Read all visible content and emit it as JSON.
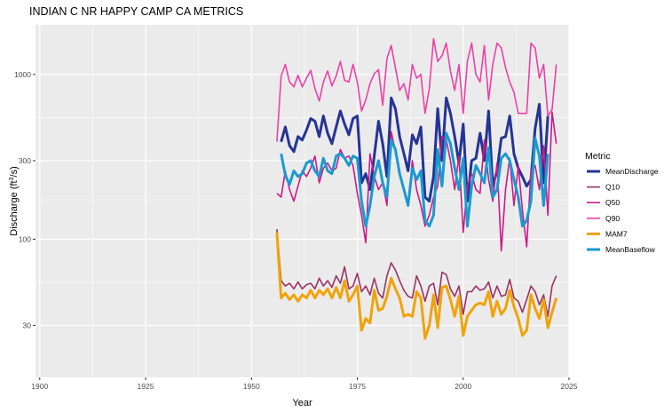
{
  "chart_data": {
    "type": "line",
    "title": "INDIAN C NR HAPPY CAMP CA  METRICS",
    "xlabel": "Year",
    "ylabel": "Discharge (ft³/s)",
    "ylabel_parts": [
      "Discharge (ft",
      "3",
      "/s)"
    ],
    "xlim": [
      1899,
      2025
    ],
    "ylim": [
      14.5,
      2000
    ],
    "y_scale": "log",
    "x_ticks": [
      1900,
      1925,
      1950,
      1975,
      2000,
      2025
    ],
    "x_tick_labels": [
      "1900",
      "1925",
      "1950",
      "1975",
      "2000",
      "2025"
    ],
    "y_ticks": [
      30,
      100,
      300,
      1000
    ],
    "y_tick_labels": [
      "30",
      "100",
      "300",
      "1000"
    ],
    "grid": true,
    "background": "#ebebeb",
    "legend": {
      "title": "Metric",
      "position": "right"
    },
    "series": [
      {
        "name": "MeanDischarge",
        "color": "#253494",
        "width": 3,
        "x": [
          1957,
          1958,
          1959,
          1960,
          1961,
          1962,
          1963,
          1964,
          1965,
          1966,
          1967,
          1968,
          1969,
          1970,
          1971,
          1972,
          1973,
          1974,
          1975,
          1976,
          1977,
          1978,
          1979,
          1980,
          1981,
          1982,
          1983,
          1984,
          1985,
          1986,
          1987,
          1988,
          1989,
          1990,
          1991,
          1992,
          1993,
          1994,
          1995,
          1996,
          1997,
          1998,
          1999,
          2000,
          2001,
          2002,
          2003,
          2004,
          2005,
          2006,
          2007,
          2008,
          2009,
          2010,
          2011,
          2012,
          2013,
          2014,
          2015,
          2016,
          2017,
          2018,
          2019,
          2020
        ],
        "y": [
          390,
          480,
          370,
          340,
          420,
          400,
          460,
          540,
          520,
          420,
          560,
          440,
          380,
          480,
          600,
          500,
          430,
          540,
          560,
          220,
          250,
          200,
          320,
          520,
          380,
          240,
          720,
          620,
          420,
          330,
          260,
          430,
          380,
          480,
          180,
          170,
          240,
          620,
          300,
          720,
          580,
          420,
          290,
          500,
          170,
          300,
          310,
          440,
          300,
          600,
          210,
          260,
          410,
          420,
          560,
          330,
          270,
          240,
          210,
          230,
          470,
          660,
          220,
          560
        ]
      },
      {
        "name": "Q10",
        "color": "#993366",
        "width": 1.6,
        "x": [
          1956,
          1957,
          1958,
          1959,
          1960,
          1961,
          1962,
          1963,
          1964,
          1965,
          1966,
          1967,
          1968,
          1969,
          1970,
          1971,
          1972,
          1973,
          1974,
          1975,
          1976,
          1977,
          1978,
          1979,
          1980,
          1981,
          1982,
          1983,
          1984,
          1985,
          1986,
          1987,
          1988,
          1989,
          1990,
          1991,
          1992,
          1993,
          1994,
          1995,
          1996,
          1997,
          1998,
          1999,
          2000,
          2001,
          2002,
          2003,
          2004,
          2005,
          2006,
          2007,
          2008,
          2009,
          2010,
          2011,
          2012,
          2013,
          2014,
          2015,
          2016,
          2017,
          2018,
          2019,
          2020,
          2021,
          2022
        ],
        "y": [
          115,
          56,
          52,
          54,
          50,
          55,
          50,
          53,
          54,
          50,
          58,
          52,
          56,
          51,
          60,
          54,
          68,
          50,
          52,
          62,
          48,
          52,
          46,
          58,
          47,
          44,
          60,
          72,
          65,
          56,
          49,
          45,
          44,
          60,
          52,
          42,
          52,
          54,
          40,
          63,
          61,
          50,
          45,
          52,
          35,
          48,
          48,
          52,
          49,
          50,
          55,
          44,
          52,
          45,
          46,
          57,
          44,
          42,
          36,
          43,
          52,
          48,
          40,
          46,
          34,
          52,
          60
        ]
      },
      {
        "name": "Q50",
        "color": "#cc1a87",
        "width": 1.6,
        "x": [
          1956,
          1957,
          1958,
          1959,
          1960,
          1961,
          1962,
          1963,
          1964,
          1965,
          1966,
          1967,
          1968,
          1969,
          1970,
          1971,
          1972,
          1973,
          1974,
          1975,
          1976,
          1977,
          1978,
          1979,
          1980,
          1981,
          1982,
          1983,
          1984,
          1985,
          1986,
          1987,
          1988,
          1989,
          1990,
          1991,
          1992,
          1993,
          1994,
          1995,
          1996,
          1997,
          1998,
          1999,
          2000,
          2001,
          2002,
          2003,
          2004,
          2005,
          2006,
          2007,
          2008,
          2009,
          2010,
          2011,
          2012,
          2013,
          2014,
          2015,
          2016,
          2017,
          2018,
          2019,
          2020,
          2021,
          2022
        ],
        "y": [
          190,
          180,
          260,
          200,
          170,
          210,
          260,
          240,
          270,
          320,
          220,
          270,
          290,
          260,
          270,
          350,
          310,
          320,
          280,
          190,
          140,
          95,
          330,
          240,
          200,
          220,
          160,
          450,
          340,
          250,
          200,
          160,
          300,
          200,
          160,
          120,
          140,
          180,
          210,
          420,
          400,
          300,
          200,
          320,
          110,
          210,
          250,
          200,
          190,
          400,
          230,
          170,
          290,
          85,
          200,
          310,
          160,
          280,
          150,
          90,
          260,
          280,
          200,
          370,
          140,
          590,
          380
        ]
      },
      {
        "name": "Q90",
        "color": "#ee3fa8",
        "width": 1.6,
        "x": [
          1956,
          1957,
          1958,
          1959,
          1960,
          1961,
          1962,
          1963,
          1964,
          1965,
          1966,
          1967,
          1968,
          1969,
          1970,
          1971,
          1972,
          1973,
          1974,
          1975,
          1976,
          1977,
          1978,
          1979,
          1980,
          1981,
          1982,
          1983,
          1984,
          1985,
          1986,
          1987,
          1988,
          1989,
          1990,
          1991,
          1992,
          1993,
          1994,
          1995,
          1996,
          1997,
          1998,
          1999,
          2000,
          2001,
          2002,
          2003,
          2004,
          2005,
          2006,
          2007,
          2008,
          2009,
          2010,
          2011,
          2012,
          2013,
          2014,
          2015,
          2016,
          2017,
          2018,
          2019,
          2020,
          2021,
          2022
        ],
        "y": [
          390,
          980,
          1150,
          900,
          840,
          990,
          840,
          950,
          1060,
          820,
          690,
          900,
          1050,
          850,
          980,
          1200,
          920,
          900,
          1150,
          900,
          600,
          700,
          880,
          1010,
          1070,
          650,
          1250,
          1500,
          1100,
          800,
          880,
          700,
          1150,
          950,
          1000,
          580,
          820,
          1650,
          1200,
          1300,
          1550,
          1050,
          800,
          1150,
          580,
          1200,
          1550,
          1000,
          900,
          1500,
          700,
          1150,
          1550,
          1450,
          1100,
          900,
          780,
          580,
          580,
          580,
          1550,
          1450,
          950,
          1150,
          560,
          610,
          1150
        ]
      },
      {
        "name": "MAM7",
        "color": "#f0a30a",
        "width": 3,
        "x": [
          1956,
          1957,
          1958,
          1959,
          1960,
          1961,
          1962,
          1963,
          1964,
          1965,
          1966,
          1967,
          1968,
          1969,
          1970,
          1971,
          1972,
          1973,
          1974,
          1975,
          1976,
          1977,
          1978,
          1979,
          1980,
          1981,
          1982,
          1983,
          1984,
          1985,
          1986,
          1987,
          1988,
          1989,
          1990,
          1991,
          1992,
          1993,
          1994,
          1995,
          1996,
          1997,
          1998,
          1999,
          2000,
          2001,
          2002,
          2003,
          2004,
          2005,
          2006,
          2007,
          2008,
          2009,
          2010,
          2011,
          2012,
          2013,
          2014,
          2015,
          2016,
          2017,
          2018,
          2019,
          2020,
          2021,
          2022
        ],
        "y": [
          110,
          44,
          47,
          43,
          46,
          42,
          46,
          44,
          49,
          44,
          49,
          46,
          50,
          44,
          51,
          44,
          56,
          42,
          46,
          52,
          28,
          33,
          31,
          49,
          37,
          38,
          45,
          58,
          50,
          44,
          34,
          35,
          34,
          48,
          44,
          25,
          30,
          46,
          29,
          51,
          52,
          43,
          34,
          45,
          26,
          34,
          37,
          40,
          41,
          40,
          48,
          34,
          42,
          35,
          38,
          49,
          39,
          33,
          26,
          28,
          46,
          38,
          33,
          43,
          29,
          36,
          44
        ]
      },
      {
        "name": "MeanBaseflow",
        "color": "#1a9ad0",
        "width": 3,
        "x": [
          1957,
          1958,
          1959,
          1960,
          1961,
          1962,
          1963,
          1964,
          1965,
          1966,
          1967,
          1968,
          1969,
          1970,
          1971,
          1972,
          1973,
          1974,
          1975,
          1976,
          1977,
          1978,
          1979,
          1980,
          1981,
          1982,
          1983,
          1984,
          1985,
          1986,
          1987,
          1988,
          1989,
          1990,
          1991,
          1992,
          1993,
          1994,
          1995,
          1996,
          1997,
          1998,
          1999,
          2000,
          2001,
          2002,
          2003,
          2004,
          2005,
          2006,
          2007,
          2008,
          2009,
          2010,
          2011,
          2012,
          2013,
          2014,
          2015,
          2016,
          2017,
          2018,
          2019,
          2020
        ],
        "y": [
          330,
          245,
          215,
          260,
          240,
          250,
          290,
          300,
          260,
          240,
          310,
          260,
          250,
          320,
          330,
          310,
          280,
          320,
          310,
          170,
          120,
          160,
          240,
          300,
          220,
          180,
          400,
          350,
          250,
          200,
          160,
          270,
          230,
          260,
          130,
          120,
          140,
          350,
          210,
          440,
          380,
          270,
          200,
          310,
          120,
          210,
          280,
          250,
          220,
          360,
          180,
          200,
          310,
          330,
          300,
          230,
          180,
          120,
          130,
          170,
          410,
          320,
          160,
          330
        ]
      }
    ]
  }
}
